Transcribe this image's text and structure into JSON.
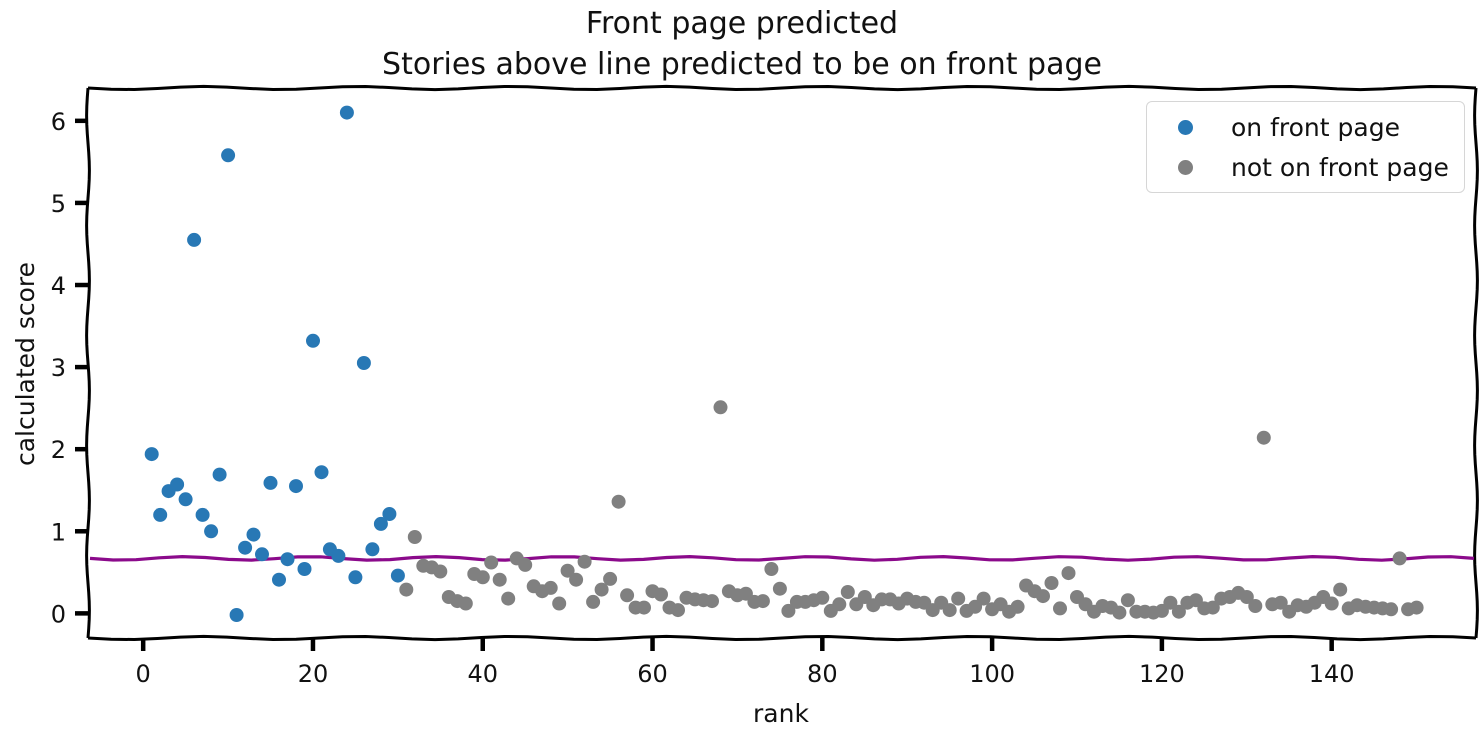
{
  "chart_data": {
    "type": "scatter",
    "title": "Front page predicted",
    "subtitle": "Stories above line predicted to be on front page",
    "xlabel": "rank",
    "ylabel": "calculated score",
    "xlim": [
      -6.5,
      157
    ],
    "ylim": [
      -0.3,
      6.4
    ],
    "xticks": [
      0,
      20,
      40,
      60,
      80,
      100,
      120,
      140
    ],
    "yticks": [
      0,
      1,
      2,
      3,
      4,
      5,
      6
    ],
    "grid": false,
    "legend_position": "top-right",
    "threshold": {
      "y": 0.67,
      "color": "#8b0a8b"
    },
    "series": [
      {
        "name": "on front page",
        "color": "#2878b5",
        "points": [
          [
            1,
            1.94
          ],
          [
            2,
            1.2
          ],
          [
            3,
            1.49
          ],
          [
            4,
            1.57
          ],
          [
            5,
            1.39
          ],
          [
            6,
            4.55
          ],
          [
            7,
            1.2
          ],
          [
            8,
            1.0
          ],
          [
            9,
            1.69
          ],
          [
            10,
            5.58
          ],
          [
            11,
            -0.02
          ],
          [
            12,
            0.8
          ],
          [
            13,
            0.96
          ],
          [
            14,
            0.72
          ],
          [
            15,
            1.59
          ],
          [
            16,
            0.41
          ],
          [
            17,
            0.66
          ],
          [
            18,
            1.55
          ],
          [
            19,
            0.54
          ],
          [
            20,
            3.32
          ],
          [
            21,
            1.72
          ],
          [
            22,
            0.78
          ],
          [
            23,
            0.7
          ],
          [
            24,
            6.1
          ],
          [
            25,
            0.44
          ],
          [
            26,
            3.05
          ],
          [
            27,
            0.78
          ],
          [
            28,
            1.09
          ],
          [
            29,
            1.21
          ],
          [
            30,
            0.46
          ]
        ]
      },
      {
        "name": "not on front page",
        "color": "#808080",
        "points": [
          [
            31,
            0.29
          ],
          [
            32,
            0.93
          ],
          [
            33,
            0.58
          ],
          [
            34,
            0.56
          ],
          [
            35,
            0.51
          ],
          [
            36,
            0.2
          ],
          [
            37,
            0.15
          ],
          [
            38,
            0.12
          ],
          [
            39,
            0.48
          ],
          [
            40,
            0.44
          ],
          [
            41,
            0.62
          ],
          [
            42,
            0.41
          ],
          [
            43,
            0.18
          ],
          [
            44,
            0.67
          ],
          [
            45,
            0.59
          ],
          [
            46,
            0.33
          ],
          [
            47,
            0.27
          ],
          [
            48,
            0.31
          ],
          [
            49,
            0.12
          ],
          [
            50,
            0.52
          ],
          [
            51,
            0.41
          ],
          [
            52,
            0.63
          ],
          [
            53,
            0.14
          ],
          [
            54,
            0.29
          ],
          [
            55,
            0.42
          ],
          [
            56,
            1.36
          ],
          [
            57,
            0.22
          ],
          [
            58,
            0.07
          ],
          [
            59,
            0.07
          ],
          [
            60,
            0.27
          ],
          [
            61,
            0.23
          ],
          [
            62,
            0.07
          ],
          [
            63,
            0.04
          ],
          [
            64,
            0.19
          ],
          [
            65,
            0.17
          ],
          [
            66,
            0.16
          ],
          [
            67,
            0.15
          ],
          [
            68,
            2.51
          ],
          [
            69,
            0.27
          ],
          [
            70,
            0.22
          ],
          [
            71,
            0.24
          ],
          [
            72,
            0.14
          ],
          [
            73,
            0.15
          ],
          [
            74,
            0.54
          ],
          [
            75,
            0.3
          ],
          [
            76,
            0.03
          ],
          [
            77,
            0.14
          ],
          [
            78,
            0.14
          ],
          [
            79,
            0.16
          ],
          [
            80,
            0.19
          ],
          [
            81,
            0.03
          ],
          [
            82,
            0.11
          ],
          [
            83,
            0.26
          ],
          [
            84,
            0.11
          ],
          [
            85,
            0.2
          ],
          [
            86,
            0.1
          ],
          [
            87,
            0.17
          ],
          [
            88,
            0.17
          ],
          [
            89,
            0.12
          ],
          [
            90,
            0.18
          ],
          [
            91,
            0.14
          ],
          [
            92,
            0.13
          ],
          [
            93,
            0.04
          ],
          [
            94,
            0.13
          ],
          [
            95,
            0.04
          ],
          [
            96,
            0.18
          ],
          [
            97,
            0.03
          ],
          [
            98,
            0.08
          ],
          [
            99,
            0.18
          ],
          [
            100,
            0.05
          ],
          [
            101,
            0.11
          ],
          [
            102,
            0.02
          ],
          [
            103,
            0.08
          ],
          [
            104,
            0.34
          ],
          [
            105,
            0.27
          ],
          [
            106,
            0.21
          ],
          [
            107,
            0.37
          ],
          [
            108,
            0.06
          ],
          [
            109,
            0.49
          ],
          [
            110,
            0.2
          ],
          [
            111,
            0.11
          ],
          [
            112,
            0.02
          ],
          [
            113,
            0.09
          ],
          [
            114,
            0.07
          ],
          [
            115,
            0.01
          ],
          [
            116,
            0.16
          ],
          [
            117,
            0.02
          ],
          [
            118,
            0.02
          ],
          [
            119,
            0.01
          ],
          [
            120,
            0.03
          ],
          [
            121,
            0.13
          ],
          [
            122,
            0.02
          ],
          [
            123,
            0.13
          ],
          [
            124,
            0.16
          ],
          [
            125,
            0.06
          ],
          [
            126,
            0.07
          ],
          [
            127,
            0.18
          ],
          [
            128,
            0.2
          ],
          [
            129,
            0.25
          ],
          [
            130,
            0.2
          ],
          [
            131,
            0.09
          ],
          [
            132,
            2.14
          ],
          [
            133,
            0.11
          ],
          [
            134,
            0.13
          ],
          [
            135,
            0.02
          ],
          [
            136,
            0.1
          ],
          [
            137,
            0.08
          ],
          [
            138,
            0.13
          ],
          [
            139,
            0.2
          ],
          [
            140,
            0.12
          ],
          [
            141,
            0.29
          ],
          [
            142,
            0.06
          ],
          [
            143,
            0.1
          ],
          [
            144,
            0.08
          ],
          [
            145,
            0.07
          ],
          [
            146,
            0.06
          ],
          [
            147,
            0.05
          ],
          [
            148,
            0.67
          ],
          [
            149,
            0.05
          ],
          [
            150,
            0.07
          ]
        ]
      }
    ]
  }
}
